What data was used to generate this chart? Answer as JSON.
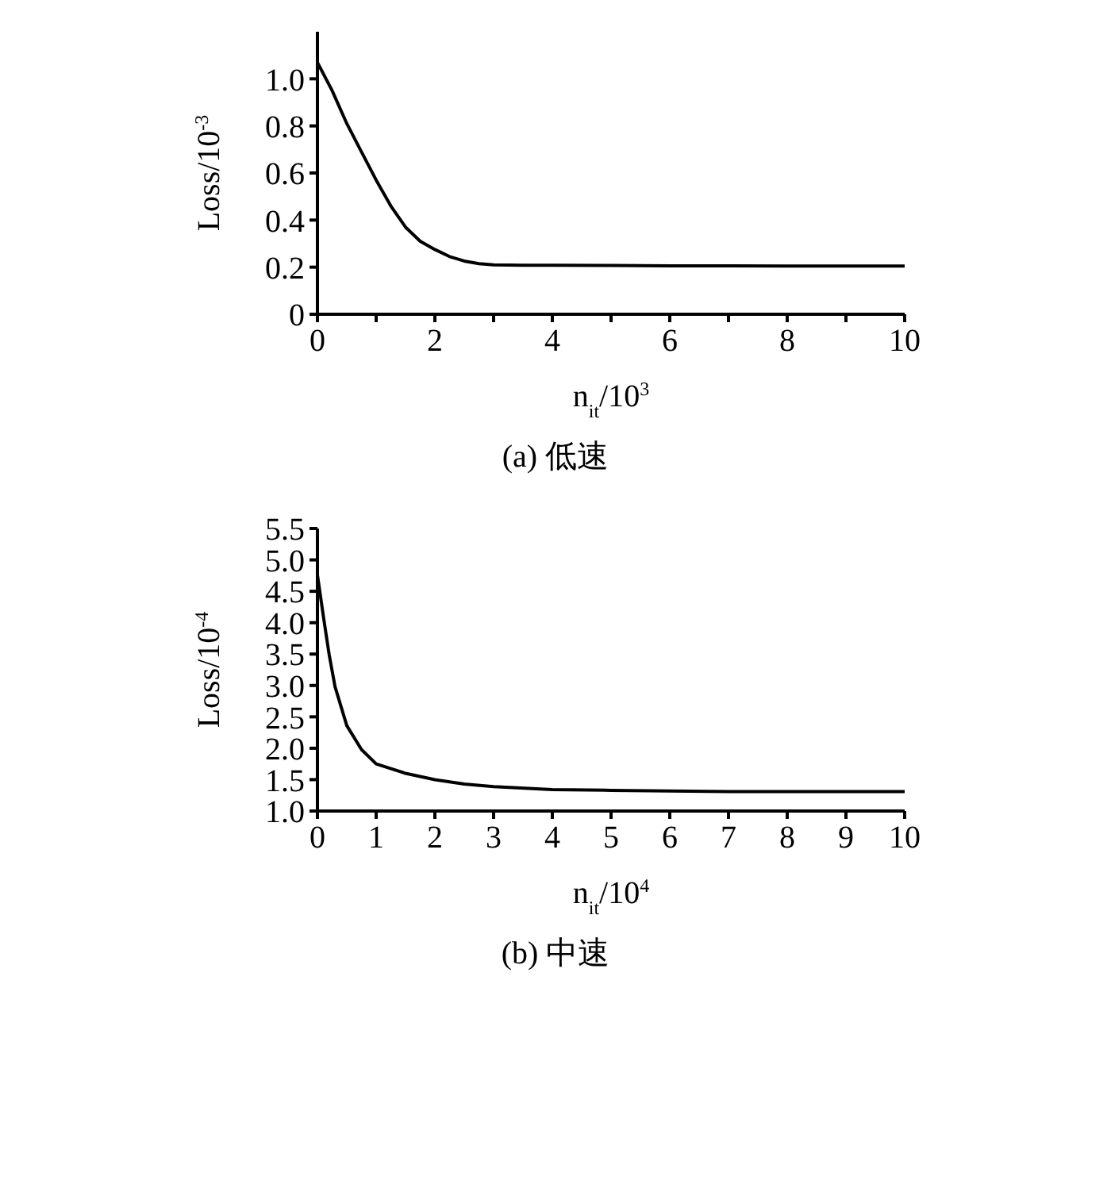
{
  "chart_data": [
    {
      "type": "line",
      "xlabel": "n$_{it}$/10$^{3}$",
      "ylabel": "Loss/10$^{-3}$",
      "annotations": [
        "(a) 低速"
      ],
      "xlim": [
        0,
        10
      ],
      "ylim": [
        0,
        1.2
      ],
      "xticks": [
        0,
        {
          "value": 1,
          "label": null
        },
        2,
        {
          "value": 3,
          "label": null
        },
        4,
        {
          "value": 5,
          "label": null
        },
        6,
        {
          "value": 7,
          "label": null
        },
        8,
        {
          "value": 9,
          "label": null
        },
        10
      ],
      "yticks": [
        0,
        0.2,
        0.4,
        0.6,
        0.8,
        "1.0"
      ],
      "grid": false,
      "legend": false,
      "marker": "none",
      "line_style": "solid",
      "series": [
        {
          "color": "#000000",
          "x": [
            0,
            0.25,
            0.5,
            0.75,
            1,
            1.25,
            1.5,
            1.75,
            2,
            2.25,
            2.5,
            2.75,
            3,
            3.5,
            4,
            5,
            6,
            7,
            8,
            9,
            10
          ],
          "values": [
            1.07,
            0.95,
            0.81,
            0.69,
            0.57,
            0.46,
            0.37,
            0.31,
            0.275,
            0.245,
            0.226,
            0.215,
            0.21,
            0.208,
            0.208,
            0.207,
            0.206,
            0.206,
            0.205,
            0.205,
            0.205
          ]
        }
      ]
    },
    {
      "type": "line",
      "xlabel": "n$_{it}$/10$^{4}$",
      "ylabel": "Loss/10$^{-4}$",
      "annotations": [
        "(b) 中速"
      ],
      "xlim": [
        0,
        10
      ],
      "ylim": [
        1,
        5.5
      ],
      "xticks": [
        0,
        1,
        2,
        3,
        4,
        5,
        6,
        7,
        8,
        9,
        10
      ],
      "yticks": [
        "1.0",
        1.5,
        "2.0",
        2.5,
        "3.0",
        3.5,
        "4.0",
        4.5,
        "5.0",
        5.5
      ],
      "grid": false,
      "legend": false,
      "marker": "none",
      "line_style": "solid",
      "series": [
        {
          "color": "#000000",
          "x": [
            0,
            0.1,
            0.2,
            0.3,
            0.5,
            0.75,
            1,
            1.5,
            2,
            2.5,
            3,
            4,
            5,
            6,
            7,
            8,
            9,
            10
          ],
          "values": [
            4.76,
            4.11,
            3.49,
            2.98,
            2.36,
            1.98,
            1.75,
            1.6,
            1.5,
            1.43,
            1.39,
            1.34,
            1.33,
            1.32,
            1.31,
            1.31,
            1.31,
            1.31
          ]
        }
      ]
    }
  ]
}
